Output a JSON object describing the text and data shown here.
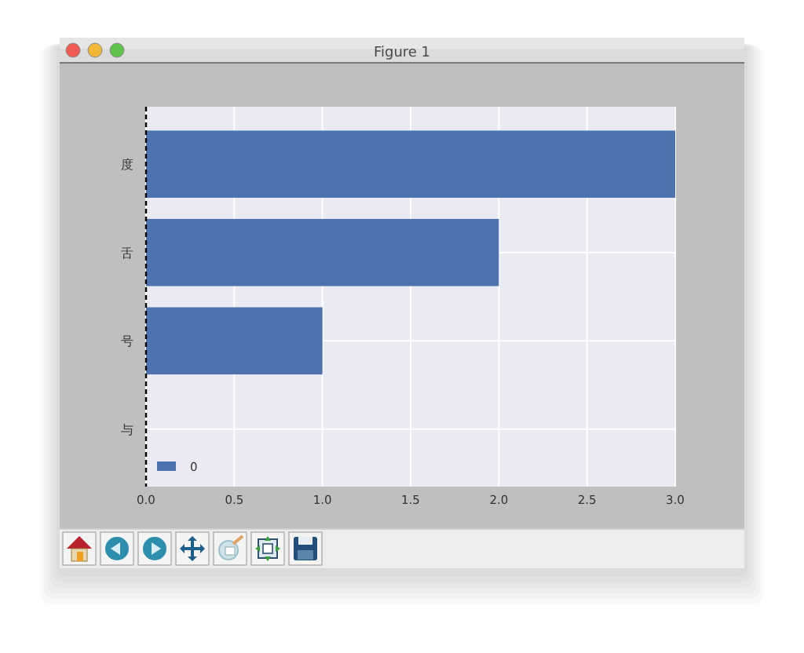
{
  "chart_data": {
    "type": "bar",
    "orientation": "horizontal",
    "title": "Figure 1",
    "categories": [
      "度",
      "舌",
      "号",
      "与"
    ],
    "series": [
      {
        "name": "0",
        "color": "#4c72b0",
        "values": [
          3,
          2,
          1,
          0
        ]
      }
    ],
    "xlim": [
      0,
      3
    ],
    "xticks": [
      {
        "value": 0,
        "label": "0.0"
      },
      0.5,
      {
        "value": 1,
        "label": "1.0"
      },
      1.5,
      {
        "value": 2,
        "label": "2.0"
      },
      2.5,
      {
        "value": 3,
        "label": "3.0"
      }
    ],
    "grid": true,
    "legend": "bottom left",
    "ref_lines": [
      {
        "axis": "x",
        "value": 0,
        "color": "#000000",
        "line_style": "dashed"
      }
    ]
  }
}
